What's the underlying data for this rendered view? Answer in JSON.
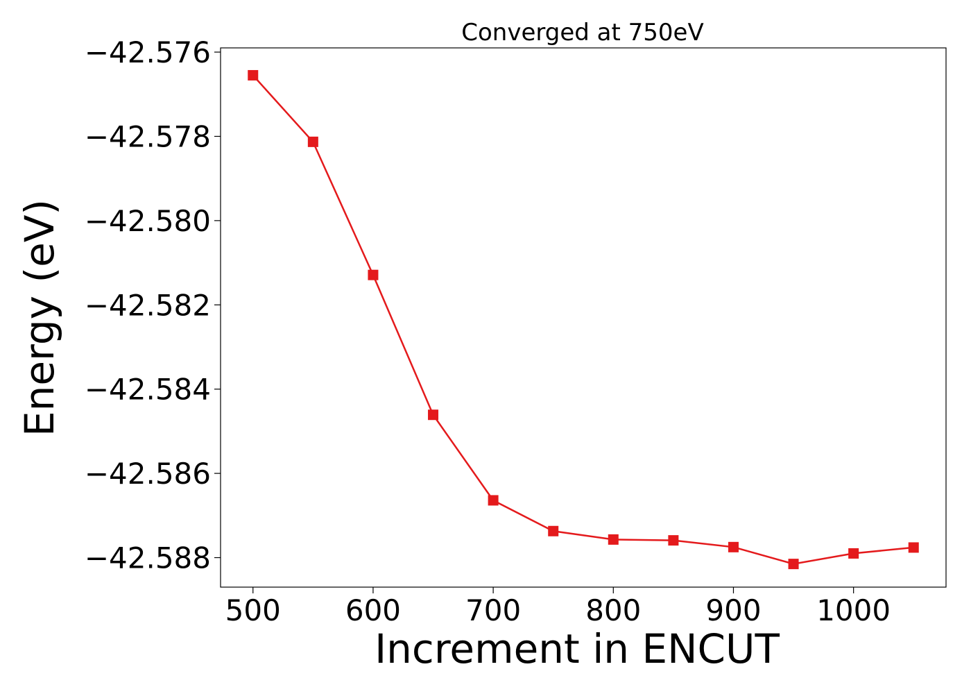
{
  "chart_data": {
    "type": "line",
    "title": "Converged at 750eV",
    "xlabel": "Increment in ENCUT",
    "ylabel": "Energy (eV)",
    "xlim": [
      473,
      1077
    ],
    "ylim": [
      -42.5887,
      -42.5759
    ],
    "x_ticks": [
      500,
      600,
      700,
      800,
      900,
      1000
    ],
    "x_tick_labels": [
      "500",
      "600",
      "700",
      "800",
      "900",
      "1000"
    ],
    "y_ticks": [
      -42.576,
      -42.578,
      -42.58,
      -42.582,
      -42.584,
      -42.586,
      -42.588
    ],
    "y_tick_labels": [
      "−42.576",
      "−42.578",
      "−42.580",
      "−42.582",
      "−42.584",
      "−42.586",
      "−42.588"
    ],
    "grid": false,
    "legend": "none",
    "series": [
      {
        "color": "#e41a1c",
        "marker": "square",
        "x": [
          500,
          550,
          600,
          650,
          700,
          750,
          800,
          850,
          900,
          950,
          1000,
          1050
        ],
        "y": [
          -42.57655,
          -42.57813,
          -42.58129,
          -42.58461,
          -42.58664,
          -42.58737,
          -42.58757,
          -42.58759,
          -42.58775,
          -42.58815,
          -42.5879,
          -42.58776
        ]
      }
    ]
  }
}
